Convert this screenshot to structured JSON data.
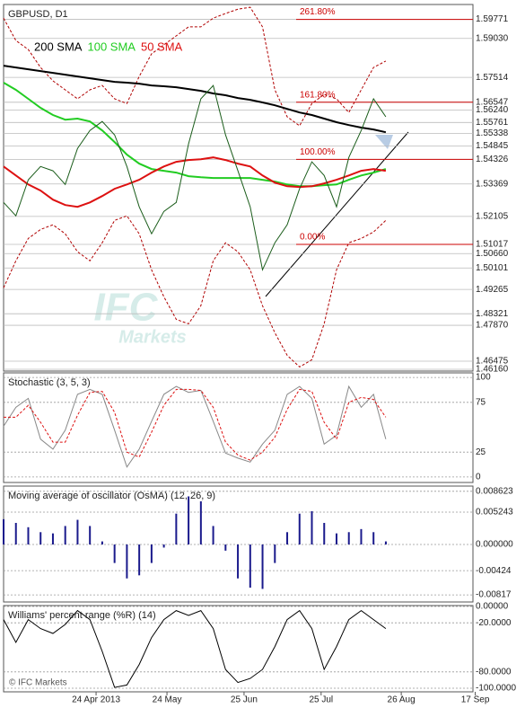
{
  "chart_data": [
    {
      "type": "line",
      "title": "GBPUSD, D1",
      "x": [
        0,
        4,
        8,
        12,
        16,
        20,
        24,
        28,
        32,
        36,
        40,
        44,
        48,
        52,
        56,
        60,
        64,
        68,
        72,
        76,
        80,
        84,
        88,
        92,
        96,
        100,
        104,
        108,
        112,
        116,
        120,
        124
      ],
      "xlim": [
        0,
        154
      ],
      "ylim": [
        1.4609,
        1.6035
      ],
      "yticks": [
        1.59771,
        {
          "value": 1.5903,
          "label": "1.59030"
        },
        1.57514,
        1.56547,
        {
          "value": 1.5624,
          "label": "1.56240"
        },
        1.55761,
        1.55338,
        1.54845,
        1.54326,
        1.53369,
        1.52105,
        1.51017,
        {
          "value": 1.5066,
          "label": "1.50660"
        },
        1.50101,
        1.49265,
        1.48321,
        {
          "value": 1.4787,
          "label": "1.47870"
        },
        1.46475,
        {
          "value": 1.4616,
          "label": "1.46160"
        }
      ],
      "grid": true,
      "series": [
        {
          "color": "#b00000",
          "dash": true,
          "values": [
            1.5982,
            1.5895,
            1.586,
            1.579,
            1.5738,
            1.5703,
            1.5668,
            1.5703,
            1.572,
            1.5668,
            1.565,
            1.5755,
            1.5843,
            1.5878,
            1.5913,
            1.5948,
            1.5948,
            1.5982,
            1.6,
            1.6017,
            1.6024,
            1.5948,
            1.5703,
            1.5598,
            1.5563,
            1.565,
            1.5685,
            1.5668,
            1.5615,
            1.5703,
            1.579,
            1.5815
          ]
        },
        {
          "color": "#b00000",
          "dash": true,
          "values": [
            1.4933,
            1.5038,
            1.5125,
            1.516,
            1.5178,
            1.5143,
            1.5073,
            1.5038,
            1.5108,
            1.5195,
            1.5213,
            1.5143,
            1.5003,
            1.4898,
            1.481,
            1.4793,
            1.4863,
            1.5038,
            1.5108,
            1.5073,
            1.5003,
            1.4863,
            1.4758,
            1.467,
            1.4625,
            1.4653,
            1.4793,
            1.5003,
            1.5108,
            1.5125,
            1.515,
            1.5195
          ]
        },
        {
          "name": "200 SMA",
          "color": "#000000",
          "values": [
            1.5797,
            1.579,
            1.5783,
            1.5776,
            1.5769,
            1.5762,
            1.5755,
            1.5748,
            1.5741,
            1.5734,
            1.5731,
            1.5727,
            1.572,
            1.5717,
            1.5713,
            1.5706,
            1.5699,
            1.5689,
            1.5682,
            1.5671,
            1.5664,
            1.5654,
            1.5643,
            1.5629,
            1.5615,
            1.5605,
            1.5591,
            1.5577,
            1.5566,
            1.5556,
            1.5549,
            1.5538
          ]
        },
        {
          "name": "100 SMA",
          "color": "#22cc22",
          "values": [
            1.5731,
            1.5703,
            1.5668,
            1.5633,
            1.5605,
            1.5587,
            1.5591,
            1.558,
            1.5545,
            1.55,
            1.5451,
            1.5416,
            1.5395,
            1.5388,
            1.5381,
            1.5367,
            1.5363,
            1.536,
            1.536,
            1.536,
            1.536,
            1.5353,
            1.5346,
            1.5335,
            1.5328,
            1.5328,
            1.5332,
            1.5335,
            1.5353,
            1.537,
            1.5381,
            1.5395
          ]
        },
        {
          "name": "50 SMA",
          "color": "#dd1111",
          "values": [
            1.5405,
            1.537,
            1.5335,
            1.5311,
            1.5276,
            1.5255,
            1.5248,
            1.5265,
            1.529,
            1.5318,
            1.5335,
            1.5353,
            1.5381,
            1.5405,
            1.5423,
            1.543,
            1.5433,
            1.544,
            1.543,
            1.5416,
            1.5405,
            1.537,
            1.5342,
            1.5328,
            1.5325,
            1.5328,
            1.5339,
            1.5353,
            1.537,
            1.5388,
            1.5395,
            1.5388
          ]
        },
        {
          "color": "#1a5c1a",
          "values": [
            1.5265,
            1.5213,
            1.5353,
            1.5405,
            1.5388,
            1.5335,
            1.5475,
            1.5545,
            1.558,
            1.5528,
            1.5405,
            1.5248,
            1.5143,
            1.523,
            1.5265,
            1.5493,
            1.5668,
            1.572,
            1.5528,
            1.5388,
            1.5248,
            1.5003,
            1.5108,
            1.5178,
            1.5318,
            1.5423,
            1.537,
            1.5248,
            1.544,
            1.5545,
            1.5668,
            1.5598
          ]
        }
      ],
      "fib_levels": [
        {
          "label": "261.80%",
          "value": 1.59771
        },
        {
          "label": "161.80%",
          "value": 1.56547
        },
        {
          "label": "100.00%",
          "value": 1.54326
        },
        {
          "label": "0.00%",
          "value": 1.51017
        }
      ],
      "fib_color": "#cc0000",
      "watermark": [
        "IFC",
        "Markets"
      ]
    },
    {
      "type": "line",
      "title": "Stochastic (3, 5, 3)",
      "x": [
        0,
        4,
        8,
        12,
        16,
        20,
        24,
        28,
        32,
        36,
        40,
        44,
        48,
        52,
        56,
        60,
        64,
        68,
        72,
        76,
        80,
        84,
        88,
        92,
        96,
        100,
        104,
        108,
        112,
        116,
        120,
        124
      ],
      "xlim": [
        0,
        154
      ],
      "ylim": [
        -5.5,
        104.6
      ],
      "yticks": [
        100,
        75,
        25,
        0
      ],
      "grid": true,
      "series": [
        {
          "color": "#888888",
          "values": [
            51,
            70,
            79,
            38,
            28,
            47,
            83,
            88,
            83,
            47,
            10,
            28,
            56,
            83,
            91,
            85,
            87,
            56,
            24,
            19,
            15,
            33,
            47,
            83,
            91,
            79,
            33,
            42,
            91,
            70,
            83,
            38
          ]
        },
        {
          "color": "#dd1111",
          "dash": true,
          "values": [
            60,
            60,
            72,
            55,
            35,
            35,
            62,
            85,
            86,
            65,
            25,
            20,
            45,
            72,
            88,
            88,
            87,
            70,
            35,
            22,
            17,
            25,
            40,
            68,
            88,
            86,
            55,
            38,
            75,
            80,
            78,
            60
          ]
        }
      ]
    },
    {
      "type": "bar",
      "title": "Moving average of oscillator (OsMA) (12, 26, 9)",
      "x": [
        0,
        4,
        8,
        12,
        16,
        20,
        24,
        28,
        32,
        36,
        40,
        44,
        48,
        52,
        56,
        60,
        64,
        68,
        72,
        76,
        80,
        84,
        88,
        92,
        96,
        100,
        104,
        108,
        112,
        116,
        120,
        124
      ],
      "xlim": [
        0,
        154
      ],
      "ylim": [
        -0.00932,
        0.00947
      ],
      "yticks": [
        0.008623,
        0.005243,
        {
          "value": 0,
          "label": "0.000000"
        },
        -0.00424,
        -0.00817
      ],
      "grid": true,
      "color": "#1a1a8c",
      "values": [
        0.0041,
        0.0035,
        0.0028,
        0.002,
        0.0018,
        0.003,
        0.004,
        0.003,
        0.0005,
        -0.003,
        -0.0055,
        -0.005,
        -0.003,
        -0.0005,
        0.005,
        0.0078,
        0.007,
        0.003,
        -0.001,
        -0.0055,
        -0.007,
        -0.0072,
        -0.003,
        0.002,
        0.005,
        0.0054,
        0.0035,
        0.0018,
        0.002,
        0.0025,
        0.002,
        0.0005
      ]
    },
    {
      "type": "line",
      "title": "Williams' percent range (%R) (14)",
      "x": [
        0,
        4,
        8,
        12,
        16,
        20,
        24,
        28,
        32,
        36,
        40,
        44,
        48,
        52,
        56,
        60,
        64,
        68,
        72,
        76,
        80,
        84,
        88,
        92,
        96,
        100,
        104,
        108,
        112,
        116,
        120,
        124
      ],
      "xlim": [
        0,
        154
      ],
      "ylim": [
        -104.4,
        1.1
      ],
      "yticks": [
        {
          "value": 0,
          "label": "0.00000"
        },
        {
          "value": -20,
          "label": "-20.0000"
        },
        {
          "value": -80,
          "label": "-80.0000"
        },
        {
          "value": -100,
          "label": "-100.0000"
        }
      ],
      "grid": true,
      "xticks": [
        {
          "value": 30,
          "label": "24 Apr 2013"
        },
        {
          "value": 53,
          "label": "24 May"
        },
        {
          "value": 78,
          "label": "25 Jun"
        },
        {
          "value": 103,
          "label": "25 Jul"
        },
        {
          "value": 129,
          "label": "26 Aug"
        },
        {
          "value": 153,
          "label": "17 Sep"
        }
      ],
      "series": [
        {
          "color": "#000000",
          "values": [
            -16,
            -44,
            -16,
            -27,
            -33,
            -22,
            -5,
            -16,
            -55,
            -99,
            -96,
            -71,
            -38,
            -16,
            -5,
            -11,
            -5,
            -27,
            -77,
            -93,
            -88,
            -77,
            -49,
            -16,
            -5,
            -27,
            -77,
            -49,
            -16,
            -5,
            -16,
            -27
          ]
        }
      ],
      "copyright": "© IFC Markets"
    }
  ]
}
